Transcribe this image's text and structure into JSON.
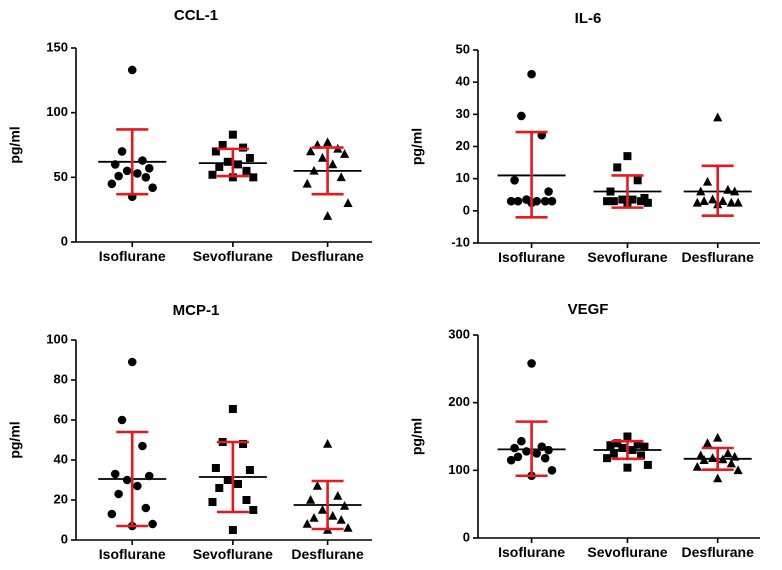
{
  "chart_data": [
    {
      "type": "scatter",
      "title": "CCL-1",
      "xlabel": "",
      "ylabel": "pg/ml",
      "ylim": [
        0,
        150
      ],
      "yticks": [
        0,
        50,
        100,
        150
      ],
      "tick_labels": [
        "0",
        "50",
        "100",
        "150"
      ],
      "categories": [
        "Isoflurane",
        "Sevoflurane",
        "Desflurane"
      ],
      "series": [
        {
          "name": "Isoflurane",
          "marker": "circle",
          "mean": 62,
          "err_low": 37,
          "err_high": 87,
          "values": [
            133,
            70,
            63,
            60,
            57,
            55,
            53,
            51,
            50,
            45,
            42,
            35
          ]
        },
        {
          "name": "Sevoflurane",
          "marker": "square",
          "mean": 61,
          "err_low": 51,
          "err_high": 72,
          "values": [
            83,
            75,
            73,
            70,
            65,
            62,
            60,
            58,
            55,
            52,
            50,
            50
          ]
        },
        {
          "name": "Desflurane",
          "marker": "triangle",
          "mean": 55,
          "err_low": 37,
          "err_high": 73,
          "values": [
            77,
            75,
            72,
            70,
            68,
            65,
            60,
            55,
            50,
            45,
            30,
            20
          ]
        }
      ]
    },
    {
      "type": "scatter",
      "title": "IL-6",
      "xlabel": "",
      "ylabel": "pg/ml",
      "ylim": [
        -10,
        50
      ],
      "yticks": [
        -10,
        0,
        10,
        20,
        30,
        40,
        50
      ],
      "tick_labels": [
        "-10",
        "0",
        "10",
        "20",
        "30",
        "40",
        "50"
      ],
      "categories": [
        "Isoflurane",
        "Sevoflurane",
        "Desflurane"
      ],
      "series": [
        {
          "name": "Isoflurane",
          "marker": "circle",
          "mean": 11,
          "err_low": -2,
          "err_high": 24.5,
          "values": [
            42.5,
            29.5,
            23.5,
            9.5,
            6,
            3.5,
            3,
            3,
            3,
            3,
            3,
            2.5
          ]
        },
        {
          "name": "Sevoflurane",
          "marker": "square",
          "mean": 6,
          "err_low": 1,
          "err_high": 11,
          "values": [
            17,
            13.5,
            9.5,
            6,
            4,
            3.5,
            3.5,
            3,
            3,
            3,
            2.5,
            2.5
          ]
        },
        {
          "name": "Desflurane",
          "marker": "triangle",
          "mean": 6,
          "err_low": -1.5,
          "err_high": 14,
          "values": [
            29,
            9,
            6.5,
            6,
            6,
            3.5,
            3,
            3,
            2.5,
            2.5,
            2.5,
            2
          ]
        }
      ]
    },
    {
      "type": "scatter",
      "title": "MCP-1",
      "xlabel": "",
      "ylabel": "pg/ml",
      "ylim": [
        0,
        100
      ],
      "yticks": [
        0,
        20,
        40,
        60,
        80,
        100
      ],
      "tick_labels": [
        "0",
        "20",
        "40",
        "60",
        "80",
        "100"
      ],
      "categories": [
        "Isoflurane",
        "Sevoflurane",
        "Desflurane"
      ],
      "series": [
        {
          "name": "Isoflurane",
          "marker": "circle",
          "mean": 30.5,
          "err_low": 7,
          "err_high": 54,
          "values": [
            89,
            60,
            47,
            33,
            32,
            30,
            27,
            23,
            16,
            13,
            8,
            7
          ]
        },
        {
          "name": "Sevoflurane",
          "marker": "square",
          "mean": 31.5,
          "err_low": 14,
          "err_high": 49,
          "values": [
            65.5,
            49,
            48,
            36,
            35,
            30,
            28,
            26,
            20,
            19,
            15,
            5
          ]
        },
        {
          "name": "Desflurane",
          "marker": "triangle",
          "mean": 17.5,
          "err_low": 5.5,
          "err_high": 29.5,
          "values": [
            48,
            27,
            22,
            20,
            17,
            15,
            12,
            11,
            10,
            8,
            6,
            5
          ]
        }
      ]
    },
    {
      "type": "scatter",
      "title": "VEGF",
      "xlabel": "",
      "ylabel": "pg/ml",
      "ylim": [
        0,
        300
      ],
      "yticks": [
        0,
        100,
        200,
        300
      ],
      "tick_labels": [
        "0",
        "100",
        "200",
        "300"
      ],
      "categories": [
        "Isoflurane",
        "Sevoflurane",
        "Desflurane"
      ],
      "series": [
        {
          "name": "Isoflurane",
          "marker": "circle",
          "mean": 131,
          "err_low": 92,
          "err_high": 172,
          "values": [
            258,
            143,
            135,
            133,
            130,
            128,
            125,
            120,
            118,
            115,
            100,
            92
          ]
        },
        {
          "name": "Sevoflurane",
          "marker": "square",
          "mean": 130,
          "err_low": 117,
          "err_high": 143,
          "values": [
            150,
            140,
            138,
            137,
            135,
            133,
            130,
            125,
            122,
            118,
            108,
            104
          ]
        },
        {
          "name": "Desflurane",
          "marker": "triangle",
          "mean": 117,
          "err_low": 101,
          "err_high": 133,
          "values": [
            148,
            140,
            125,
            122,
            120,
            118,
            116,
            115,
            110,
            105,
            100,
            88
          ]
        }
      ]
    }
  ],
  "colors": {
    "marker": "#000000",
    "mean_line": "#000000",
    "error_bar": "#e8191e",
    "axis": "#000000"
  }
}
